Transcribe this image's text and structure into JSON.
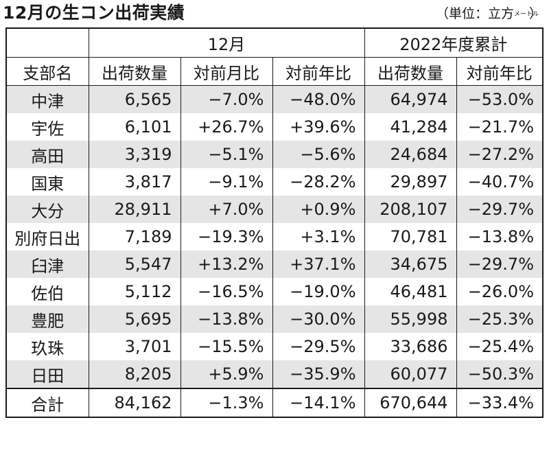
{
  "title": "12月の生コン出荷実績",
  "unit": {
    "prefix": "（単位：立方",
    "metre": "メートル",
    "suffix": "）"
  },
  "header": {
    "group_month": "12月",
    "group_cumulative": "2022年度累計",
    "col_branch": "支部名",
    "col_month_volume": "出荷数量",
    "col_month_mom": "対前月比",
    "col_month_yoy": "対前年比",
    "col_cum_volume": "出荷数量",
    "col_cum_yoy": "対前年比"
  },
  "rows": [
    {
      "branch": "中津",
      "month_volume": "6,565",
      "month_mom": "−7.0%",
      "month_yoy": "−48.0%",
      "cum_volume": "64,974",
      "cum_yoy": "−53.0%"
    },
    {
      "branch": "宇佐",
      "month_volume": "6,101",
      "month_mom": "+26.7%",
      "month_yoy": "+39.6%",
      "cum_volume": "41,284",
      "cum_yoy": "−21.7%"
    },
    {
      "branch": "高田",
      "month_volume": "3,319",
      "month_mom": "−5.1%",
      "month_yoy": "−5.6%",
      "cum_volume": "24,684",
      "cum_yoy": "−27.2%"
    },
    {
      "branch": "国東",
      "month_volume": "3,817",
      "month_mom": "−9.1%",
      "month_yoy": "−28.2%",
      "cum_volume": "29,897",
      "cum_yoy": "−40.7%"
    },
    {
      "branch": "大分",
      "month_volume": "28,911",
      "month_mom": "+7.0%",
      "month_yoy": "+0.9%",
      "cum_volume": "208,107",
      "cum_yoy": "−29.7%"
    },
    {
      "branch": "別府日出",
      "month_volume": "7,189",
      "month_mom": "−19.3%",
      "month_yoy": "+3.1%",
      "cum_volume": "70,781",
      "cum_yoy": "−13.8%"
    },
    {
      "branch": "臼津",
      "month_volume": "5,547",
      "month_mom": "+13.2%",
      "month_yoy": "+37.1%",
      "cum_volume": "34,675",
      "cum_yoy": "−29.7%"
    },
    {
      "branch": "佐伯",
      "month_volume": "5,112",
      "month_mom": "−16.5%",
      "month_yoy": "−19.0%",
      "cum_volume": "46,481",
      "cum_yoy": "−26.0%"
    },
    {
      "branch": "豊肥",
      "month_volume": "5,695",
      "month_mom": "−13.8%",
      "month_yoy": "−30.0%",
      "cum_volume": "55,998",
      "cum_yoy": "−25.3%"
    },
    {
      "branch": "玖珠",
      "month_volume": "3,701",
      "month_mom": "−15.5%",
      "month_yoy": "−29.5%",
      "cum_volume": "33,686",
      "cum_yoy": "−25.4%"
    },
    {
      "branch": "日田",
      "month_volume": "8,205",
      "month_mom": "+5.9%",
      "month_yoy": "−35.9%",
      "cum_volume": "60,077",
      "cum_yoy": "−50.3%"
    }
  ],
  "total": {
    "branch": "合計",
    "month_volume": "84,162",
    "month_mom": "−1.3%",
    "month_yoy": "−14.1%",
    "cum_volume": "670,644",
    "cum_yoy": "−33.4%"
  },
  "colors": {
    "shaded_row": "#e5e5e5",
    "border": "#1a1a1a",
    "text": "#1a1a1a"
  }
}
